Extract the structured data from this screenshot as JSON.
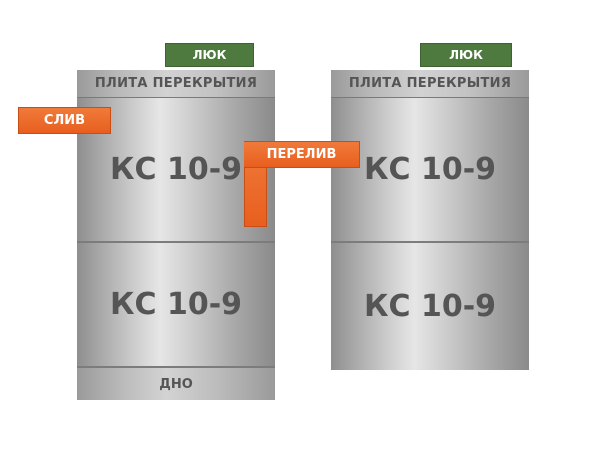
{
  "left_well": {
    "hatch_label": "ЛЮК",
    "plate_label": "ПЛИТА ПЕРЕКРЫТИЯ",
    "ring_top_label": "КС 10-9",
    "ring_bottom_label": "КС 10-9",
    "bottom_label": "ДНО"
  },
  "right_well": {
    "hatch_label": "ЛЮК",
    "plate_label": "ПЛИТА ПЕРЕКРЫТИЯ",
    "ring_top_label": "КС 10-9",
    "ring_bottom_label": "КС 10-9"
  },
  "pipes": {
    "drain_label": "СЛИВ",
    "overflow_label": "ПЕРЕЛИВ"
  },
  "colors": {
    "hatch": "#4f7a3f",
    "pipe": "#e8641f",
    "concrete": "#bdbdbd",
    "text": "#555555"
  }
}
